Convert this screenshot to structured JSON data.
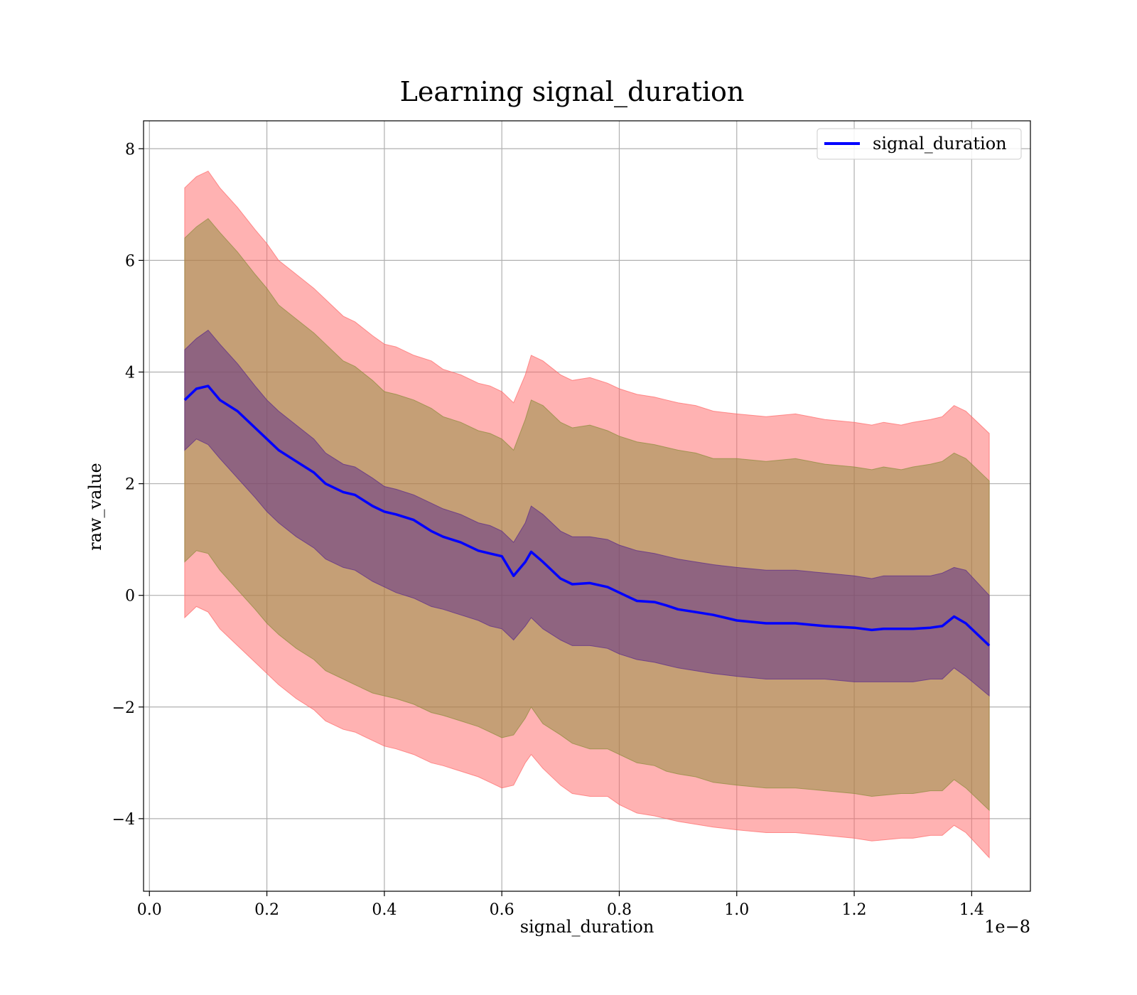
{
  "chart_data": {
    "type": "line",
    "title": "Learning signal_duration",
    "xlabel": "signal_duration",
    "ylabel": "raw_value",
    "x_offset_label": "1e−8",
    "xlim": [
      -0.01,
      1.5
    ],
    "ylim": [
      -5.3,
      8.5
    ],
    "x_ticks": [
      0.0,
      0.2,
      0.4,
      0.6,
      0.8,
      1.0,
      1.2,
      1.4
    ],
    "x_tick_labels": [
      "0.0",
      "0.2",
      "0.4",
      "0.6",
      "0.8",
      "1.0",
      "1.2",
      "1.4"
    ],
    "y_ticks": [
      -4,
      -2,
      0,
      2,
      4,
      6,
      8
    ],
    "y_tick_labels": [
      "−4",
      "−2",
      "0",
      "2",
      "4",
      "6",
      "8"
    ],
    "grid": true,
    "legend": {
      "position": "top-right",
      "entries": [
        "signal_duration"
      ]
    },
    "colors": {
      "mean_line": "#0000ff",
      "outer_band": "#ff6666",
      "middle_band": "#8b8b3a",
      "inner_band": "#5a2a8a"
    },
    "x": [
      0.06,
      0.08,
      0.1,
      0.12,
      0.15,
      0.18,
      0.2,
      0.22,
      0.25,
      0.28,
      0.3,
      0.33,
      0.35,
      0.38,
      0.4,
      0.42,
      0.45,
      0.48,
      0.5,
      0.53,
      0.56,
      0.58,
      0.6,
      0.62,
      0.64,
      0.65,
      0.67,
      0.7,
      0.72,
      0.75,
      0.78,
      0.8,
      0.83,
      0.86,
      0.88,
      0.9,
      0.93,
      0.96,
      1.0,
      1.05,
      1.1,
      1.15,
      1.2,
      1.23,
      1.25,
      1.28,
      1.3,
      1.33,
      1.35,
      1.37,
      1.39,
      1.43
    ],
    "series": [
      {
        "name": "signal_duration",
        "values": [
          3.5,
          3.7,
          3.75,
          3.5,
          3.3,
          3.0,
          2.8,
          2.6,
          2.4,
          2.2,
          2.0,
          1.85,
          1.8,
          1.6,
          1.5,
          1.45,
          1.35,
          1.15,
          1.05,
          0.95,
          0.8,
          0.75,
          0.7,
          0.35,
          0.6,
          0.78,
          0.6,
          0.3,
          0.2,
          0.22,
          0.15,
          0.05,
          -0.1,
          -0.12,
          -0.18,
          -0.25,
          -0.3,
          -0.35,
          -0.45,
          -0.5,
          -0.5,
          -0.55,
          -0.58,
          -0.62,
          -0.6,
          -0.6,
          -0.6,
          -0.58,
          -0.55,
          -0.38,
          -0.5,
          -0.9
        ]
      }
    ],
    "bands": [
      {
        "lower": [
          -0.4,
          -0.2,
          -0.3,
          -0.6,
          -0.9,
          -1.2,
          -1.4,
          -1.6,
          -1.85,
          -2.05,
          -2.25,
          -2.4,
          -2.45,
          -2.6,
          -2.7,
          -2.75,
          -2.85,
          -3.0,
          -3.05,
          -3.15,
          -3.25,
          -3.35,
          -3.45,
          -3.4,
          -3.0,
          -2.85,
          -3.1,
          -3.4,
          -3.55,
          -3.6,
          -3.6,
          -3.75,
          -3.9,
          -3.95,
          -4.0,
          -4.05,
          -4.1,
          -4.15,
          -4.2,
          -4.25,
          -4.25,
          -4.3,
          -4.35,
          -4.4,
          -4.38,
          -4.35,
          -4.35,
          -4.3,
          -4.3,
          -4.12,
          -4.25,
          -4.7
        ],
        "upper": [
          7.3,
          7.5,
          7.6,
          7.3,
          6.95,
          6.55,
          6.3,
          6.0,
          5.75,
          5.5,
          5.3,
          5.0,
          4.9,
          4.65,
          4.5,
          4.45,
          4.3,
          4.2,
          4.05,
          3.95,
          3.8,
          3.75,
          3.65,
          3.45,
          3.95,
          4.3,
          4.2,
          3.95,
          3.85,
          3.9,
          3.8,
          3.7,
          3.6,
          3.55,
          3.5,
          3.45,
          3.4,
          3.3,
          3.25,
          3.2,
          3.25,
          3.15,
          3.1,
          3.05,
          3.1,
          3.05,
          3.1,
          3.15,
          3.2,
          3.4,
          3.3,
          2.9
        ]
      },
      {
        "lower": [
          0.6,
          0.8,
          0.75,
          0.45,
          0.1,
          -0.25,
          -0.5,
          -0.7,
          -0.95,
          -1.15,
          -1.35,
          -1.5,
          -1.6,
          -1.75,
          -1.8,
          -1.85,
          -1.95,
          -2.1,
          -2.15,
          -2.25,
          -2.35,
          -2.45,
          -2.55,
          -2.5,
          -2.2,
          -2.0,
          -2.3,
          -2.5,
          -2.65,
          -2.75,
          -2.75,
          -2.85,
          -3.0,
          -3.05,
          -3.15,
          -3.2,
          -3.25,
          -3.35,
          -3.4,
          -3.45,
          -3.45,
          -3.5,
          -3.55,
          -3.6,
          -3.58,
          -3.55,
          -3.55,
          -3.5,
          -3.5,
          -3.3,
          -3.45,
          -3.85
        ],
        "upper": [
          6.4,
          6.6,
          6.75,
          6.5,
          6.15,
          5.75,
          5.5,
          5.2,
          4.95,
          4.7,
          4.5,
          4.2,
          4.1,
          3.85,
          3.65,
          3.6,
          3.5,
          3.35,
          3.2,
          3.1,
          2.95,
          2.9,
          2.8,
          2.6,
          3.15,
          3.5,
          3.4,
          3.1,
          3.0,
          3.05,
          2.95,
          2.85,
          2.75,
          2.7,
          2.65,
          2.6,
          2.55,
          2.45,
          2.45,
          2.4,
          2.45,
          2.35,
          2.3,
          2.25,
          2.3,
          2.25,
          2.3,
          2.35,
          2.4,
          2.55,
          2.45,
          2.05
        ]
      },
      {
        "lower": [
          2.6,
          2.8,
          2.7,
          2.45,
          2.1,
          1.75,
          1.5,
          1.3,
          1.05,
          0.85,
          0.65,
          0.5,
          0.45,
          0.25,
          0.15,
          0.05,
          -0.05,
          -0.2,
          -0.25,
          -0.35,
          -0.45,
          -0.55,
          -0.6,
          -0.8,
          -0.55,
          -0.4,
          -0.6,
          -0.8,
          -0.9,
          -0.9,
          -0.95,
          -1.05,
          -1.15,
          -1.2,
          -1.25,
          -1.3,
          -1.35,
          -1.4,
          -1.45,
          -1.5,
          -1.5,
          -1.5,
          -1.55,
          -1.55,
          -1.55,
          -1.55,
          -1.55,
          -1.5,
          -1.5,
          -1.3,
          -1.45,
          -1.8
        ],
        "upper": [
          4.4,
          4.6,
          4.75,
          4.5,
          4.15,
          3.75,
          3.5,
          3.3,
          3.05,
          2.8,
          2.55,
          2.35,
          2.3,
          2.1,
          1.95,
          1.9,
          1.8,
          1.65,
          1.55,
          1.45,
          1.3,
          1.25,
          1.15,
          0.95,
          1.3,
          1.6,
          1.45,
          1.15,
          1.05,
          1.05,
          1.0,
          0.9,
          0.8,
          0.75,
          0.7,
          0.65,
          0.6,
          0.55,
          0.5,
          0.45,
          0.45,
          0.4,
          0.35,
          0.3,
          0.35,
          0.35,
          0.35,
          0.35,
          0.4,
          0.5,
          0.45,
          0.0
        ]
      }
    ]
  }
}
